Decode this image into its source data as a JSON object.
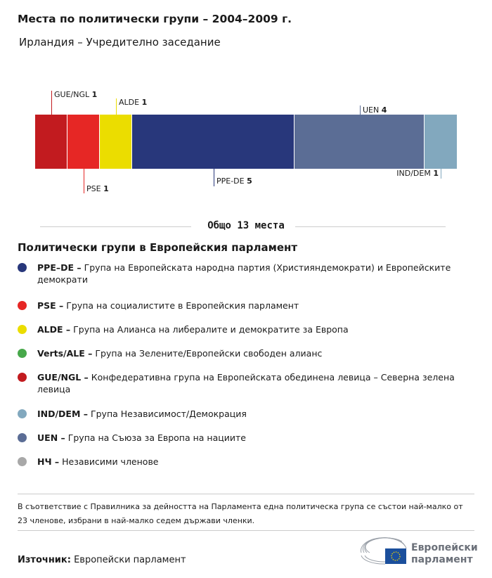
{
  "title": "Места по политически групи – 2004–2009 г.",
  "subtitle": "Ирландия – Учредително заседание",
  "chart_data": {
    "type": "bar",
    "orientation": "stacked-horizontal",
    "categories": [
      "GUE/NGL",
      "PSE",
      "ALDE",
      "PPE-DE",
      "UEN",
      "IND/DEM"
    ],
    "values": [
      1,
      1,
      1,
      5,
      4,
      1
    ],
    "colors": [
      "#c21b1f",
      "#e62725",
      "#ebdd00",
      "#28377b",
      "#5b6d95",
      "#82a8be"
    ],
    "total_label": "Общо 13 места"
  },
  "legend": {
    "title": "Политически групи в Европейския парламент",
    "items": [
      {
        "abbr": "PPE–DE –",
        "text": " Група на Европейската народна партия (Християндемократи) и Европейските демократи",
        "color": "#28377b"
      },
      {
        "abbr": "PSE –",
        "text": " Група на социалистите в Европейския парламент",
        "color": "#e62725"
      },
      {
        "abbr": "ALDE –",
        "text": " Група на Алианса на либералите и демократите за Европа",
        "color": "#ebdd00"
      },
      {
        "abbr": "Verts/ALE –",
        "text": " Група на Зелените/Европейски свободен алианс",
        "color": "#47a84a"
      },
      {
        "abbr": "GUE/NGL –",
        "text": " Конфедеративна група на Европейската обединена левица – Северна зелена левица",
        "color": "#c21b1f"
      },
      {
        "abbr": "IND/DEM –",
        "text": " Група Независимост/Демокрация",
        "color": "#82a8be"
      },
      {
        "abbr": "UEN –",
        "text": " Група на Съюза за Европа на нациите",
        "color": "#5b6d95"
      },
      {
        "abbr": "НЧ –",
        "text": " Независими членове",
        "color": "#a8a8a8"
      }
    ]
  },
  "note": "В съответствие с Правилника за дейността на Парламента една политическа група се състои най-малко от 23 членове, избрани в най-малко седем държави членки.",
  "source": {
    "label": "Източник:",
    "value": " Европейски парламент"
  },
  "logo": {
    "line1": "Европейски",
    "line2": "парламент"
  }
}
